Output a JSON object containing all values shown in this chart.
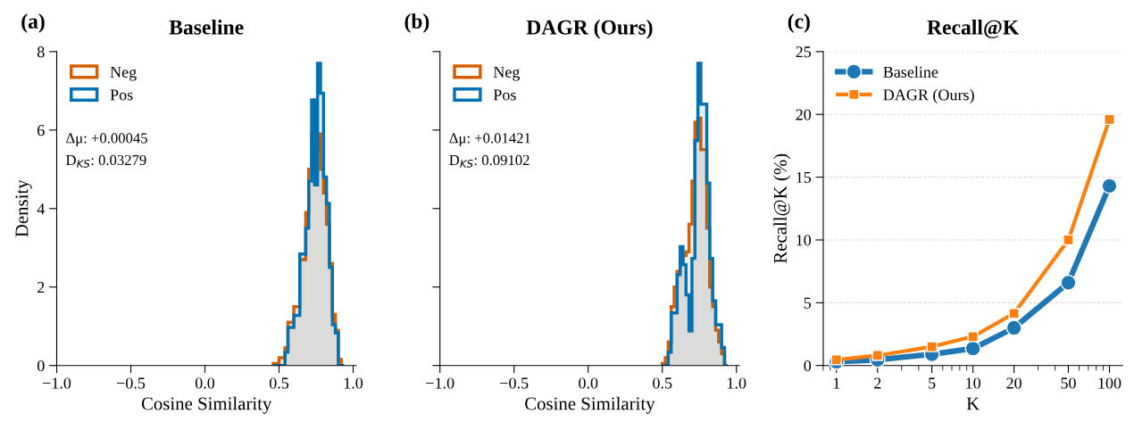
{
  "chart_data": [
    {
      "type": "histogram",
      "title": "Baseline",
      "xlabel": "Cosine Similarity",
      "ylabel": "Density",
      "xlim": [
        -1.0,
        1.02
      ],
      "xticks": [
        {
          "value": -1.0,
          "label": "−1.0"
        },
        {
          "value": -0.5,
          "label": "−0.5"
        },
        {
          "value": 0.0,
          "label": "0.0"
        },
        {
          "value": 0.5,
          "label": "0.5"
        },
        {
          "value": 1.0,
          "label": "1.0"
        }
      ],
      "ylim": [
        0,
        8
      ],
      "yticks": [
        0,
        2,
        4,
        6,
        8
      ],
      "legend": "top left",
      "grid": false,
      "annotations": [
        "(a)",
        "Δμ: +0.00045",
        "D$_{KS}$: 0.03279"
      ],
      "bins": [
        0.46,
        0.48,
        0.5,
        0.52,
        0.54,
        0.56,
        0.58,
        0.6,
        0.62,
        0.64,
        0.66,
        0.68,
        0.7,
        0.72,
        0.74,
        0.76,
        0.78,
        0.8,
        0.82,
        0.84,
        0.86,
        0.88,
        0.9,
        0.92,
        0.94
      ],
      "series": [
        {
          "name": "Neg",
          "color": "#d55e00",
          "values": [
            0.05,
            0.05,
            0.2,
            0.2,
            0.45,
            1.1,
            1.1,
            1.5,
            1.5,
            2.7,
            2.7,
            3.9,
            5.0,
            5.9,
            5.5,
            5.9,
            5.0,
            4.4,
            3.6,
            2.6,
            1.3,
            0.9,
            0.15,
            0
          ]
        },
        {
          "name": "Pos",
          "color": "#0072b2",
          "values": [
            0,
            0,
            0,
            0,
            0.34,
            0.97,
            0.97,
            1.28,
            1.28,
            2.84,
            2.84,
            3.5,
            4.7,
            6.77,
            4.6,
            7.7,
            6.94,
            4.8,
            4.13,
            2.5,
            1.04,
            0.83,
            0,
            0
          ]
        }
      ]
    },
    {
      "type": "histogram",
      "title": "DAGR (Ours)",
      "xlabel": "Cosine Similarity",
      "xlim": [
        -1.0,
        1.02
      ],
      "xticks": [
        {
          "value": -1.0,
          "label": "−1.0"
        },
        {
          "value": -0.5,
          "label": "−0.5"
        },
        {
          "value": 0.0,
          "label": "0.0"
        },
        {
          "value": 0.5,
          "label": "0.5"
        },
        {
          "value": 1.0,
          "label": "1.0"
        }
      ],
      "ylim": [
        0,
        8
      ],
      "yticks": [
        0,
        2,
        4,
        6,
        8
      ],
      "tick_labels": "x",
      "legend": "top left",
      "grid": false,
      "annotations": [
        "(b)",
        "Δμ: +0.01421",
        "D$_{KS}$: 0.09102"
      ],
      "bins": [
        0.5,
        0.52,
        0.54,
        0.56,
        0.58,
        0.6,
        0.62,
        0.64,
        0.66,
        0.68,
        0.7,
        0.72,
        0.74,
        0.76,
        0.78,
        0.8,
        0.82,
        0.84,
        0.86,
        0.88,
        0.9,
        0.92,
        0.94
      ],
      "series": [
        {
          "name": "Neg",
          "color": "#d55e00",
          "values": [
            0.05,
            0.2,
            0.6,
            1.5,
            2.0,
            2.4,
            2.6,
            2.8,
            2.9,
            3.6,
            4.7,
            6.2,
            6.3,
            5.5,
            5.5,
            3.5,
            2.0,
            1.5,
            0.9,
            0.6,
            0.3,
            0
          ]
        },
        {
          "name": "Pos",
          "color": "#0072b2",
          "values": [
            0,
            0,
            0.34,
            1.34,
            1.34,
            2.31,
            3.03,
            2.57,
            1.8,
            0.88,
            2.73,
            5.73,
            7.7,
            6.66,
            6.66,
            4.65,
            2.73,
            1.65,
            1.04,
            1.04,
            0.46,
            0
          ]
        }
      ]
    },
    {
      "type": "line",
      "title": "Recall@K",
      "xlabel": "K",
      "ylabel": "Recall@K (%)",
      "log": "x",
      "xlim": [
        0.8,
        125
      ],
      "xticks": [
        1,
        2,
        5,
        10,
        20,
        50,
        100
      ],
      "ylim": [
        0,
        25
      ],
      "yticks": [
        0,
        5,
        10,
        15,
        20,
        25
      ],
      "grid": "y",
      "legend": "top left",
      "line_style": "solid",
      "annotations": [
        "(c)"
      ],
      "x": [
        1,
        2,
        5,
        10,
        20,
        50,
        100
      ],
      "series": [
        {
          "name": "Baseline",
          "color": "#1f77b4",
          "marker": "circle",
          "values": [
            0.3,
            0.45,
            0.9,
            1.35,
            3.0,
            6.6,
            14.3
          ]
        },
        {
          "name": "DAGR (Ours)",
          "color": "#ff7f0e",
          "marker": "square",
          "values": [
            0.45,
            0.8,
            1.5,
            2.3,
            4.15,
            10.0,
            19.6
          ]
        }
      ]
    }
  ]
}
